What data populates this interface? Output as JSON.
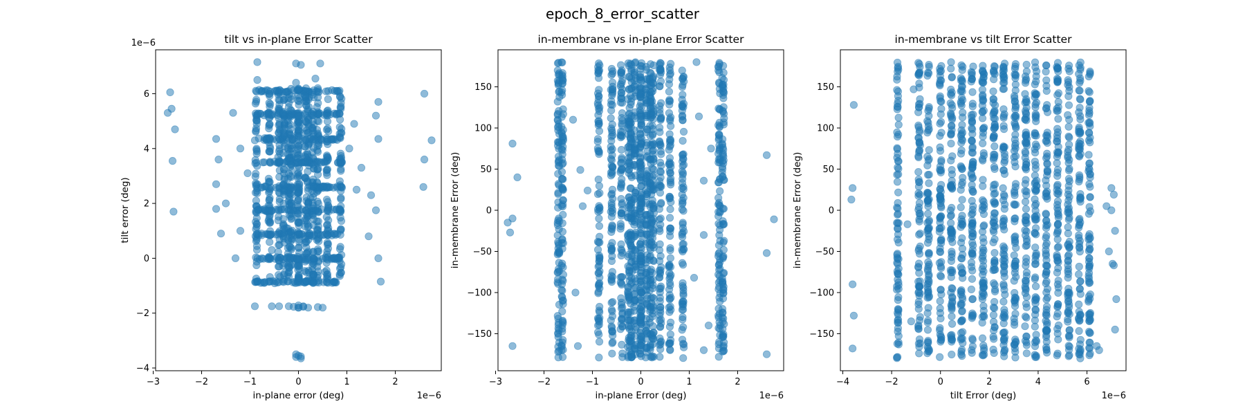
{
  "figure": {
    "suptitle": "epoch_8_error_scatter"
  },
  "chart_data": [
    {
      "type": "scatter",
      "title": "tilt vs in-plane Error Scatter",
      "xlabel": "in-plane error (deg)",
      "ylabel": "tilt error (deg)",
      "x_offset_text": "1e−6",
      "y_offset_text": "1e−6",
      "xlim": [
        -2.95,
        2.95
      ],
      "ylim": [
        -4.1,
        7.6
      ],
      "xticks": [
        -3,
        -2,
        -1,
        0,
        1,
        2
      ],
      "xtick_labels": [
        "−3",
        "−2",
        "−1",
        "0",
        "1",
        "2"
      ],
      "yticks": [
        -4,
        -2,
        0,
        2,
        4,
        6
      ],
      "ytick_labels": [
        "−4",
        "−2",
        "0",
        "2",
        "4",
        "6"
      ],
      "color": "#1f77b4",
      "alpha": 0.5,
      "series": [
        {
          "x": [
            -2.7,
            -2.65,
            -2.55,
            -2.62,
            -2.6,
            -2.58,
            2.6,
            2.75,
            2.6,
            2.58,
            -0.85,
            -0.05,
            0.05,
            0.45,
            0.35,
            -0.85,
            -0.05,
            0.4,
            -0.05,
            0.0,
            0.05,
            -0.05,
            0.05,
            0.0,
            0.1,
            -0.9,
            -1.7,
            1.65,
            1.6,
            1.65,
            -1.65,
            -1.7,
            -1.7,
            -1.6,
            1.65,
            1.7,
            1.6,
            -1.35,
            -1.2,
            1.15,
            1.3,
            -0.55,
            0.5,
            -0.2,
            0.2,
            -0.4,
            0.4,
            0.0,
            0.0,
            0.1,
            -0.1,
            1.5,
            -1.5,
            1.45,
            -1.3,
            0.85,
            -0.85,
            0.9,
            -0.9,
            0.6,
            -0.6,
            0.3,
            -0.3,
            0.7,
            -0.7,
            1.05,
            -1.05,
            1.2,
            -1.2,
            0.75,
            0.15,
            -0.15,
            0.25,
            -0.25,
            0.55,
            -0.55
          ],
          "y": [
            5.3,
            6.05,
            4.7,
            5.45,
            3.55,
            1.7,
            6.0,
            4.3,
            3.6,
            2.6,
            7.15,
            7.1,
            7.05,
            7.1,
            6.55,
            6.5,
            6.4,
            6.2,
            -3.6,
            -3.55,
            -3.65,
            -3.5,
            -3.58,
            -1.8,
            -1.75,
            -1.75,
            4.35,
            5.7,
            5.2,
            4.35,
            3.6,
            2.7,
            1.8,
            0.9,
            0.0,
            -0.85,
            1.75,
            5.3,
            4.0,
            4.9,
            3.3,
            -1.75,
            -1.8,
            -1.75,
            -1.8,
            -1.75,
            -1.78,
            -1.8,
            -1.72,
            -1.77,
            -1.77,
            2.3,
            2.0,
            0.8,
            0.0,
            1.8,
            2.7,
            3.5,
            4.3,
            5.2,
            6.0,
            0.0,
            0.9,
            -0.9,
            1.8,
            4.0,
            3.1,
            2.5,
            1.0,
            6.1,
            5.0,
            3.4,
            2.2,
            1.1,
            -0.5,
            0.3
          ],
          "dense_bands": [
            {
              "x_min": -0.9,
              "x_max": 0.9,
              "y_min": -0.9,
              "y_max": 6.1,
              "y_levels": [
                -0.87,
                0.0,
                0.87,
                1.75,
                2.6,
                3.5,
                4.35,
                5.25,
                6.1
              ],
              "x_columns": [
                -0.87,
                -0.6,
                -0.4,
                -0.2,
                0.0,
                0.2,
                0.4,
                0.6,
                0.87
              ]
            },
            {
              "x_min": -0.35,
              "x_max": 0.35,
              "y_min": -0.9,
              "y_max": 6.2,
              "y_levels": [],
              "x_columns": [
                -0.3,
                -0.15,
                0.0,
                0.15,
                0.3
              ]
            }
          ]
        }
      ]
    },
    {
      "type": "scatter",
      "title": "in-membrane vs in-plane Error Scatter",
      "xlabel": "in-plane Error (deg)",
      "ylabel": "in-membrane Error (deg)",
      "x_offset_text": "1e−6",
      "y_offset_text": "",
      "xlim": [
        -2.95,
        2.95
      ],
      "ylim": [
        -195,
        195
      ],
      "xticks": [
        -3,
        -2,
        -1,
        0,
        1,
        2
      ],
      "xtick_labels": [
        "−3",
        "−2",
        "−1",
        "0",
        "1",
        "2"
      ],
      "yticks": [
        -150,
        -100,
        -50,
        0,
        50,
        100,
        150
      ],
      "ytick_labels": [
        "−150",
        "−100",
        "−50",
        "0",
        "50",
        "100",
        "150"
      ],
      "color": "#1f77b4",
      "alpha": 0.5,
      "series": [
        {
          "x": [
            -2.65,
            -2.55,
            -2.65,
            -2.75,
            -2.7,
            -2.65,
            2.6,
            2.75,
            2.6,
            2.6,
            1.3,
            1.2,
            1.45,
            -1.3,
            -1.25,
            -1.1,
            1.1,
            1.3,
            1.4,
            -1.35,
            -1.2,
            1.15,
            1.3,
            -1.4
          ],
          "y": [
            81,
            40,
            -10,
            -15,
            -27,
            -165,
            67,
            -11,
            -52,
            -175,
            36,
            114,
            75,
            -165,
            49,
            24,
            -82,
            -30,
            -140,
            -100,
            5,
            180,
            -170,
            110
          ],
          "dense_bands": [
            {
              "x_min": -0.9,
              "x_max": 0.9,
              "y_min": -180,
              "y_max": 180,
              "y_levels": [],
              "x_columns": [
                -0.87,
                -0.6,
                -0.4,
                -0.2,
                0.0,
                0.2,
                0.4,
                0.6,
                0.87
              ]
            },
            {
              "x_min": -0.3,
              "x_max": 0.3,
              "y_min": -180,
              "y_max": 180,
              "y_levels": [],
              "x_columns": [
                -0.25,
                -0.12,
                0.0,
                0.12,
                0.25
              ]
            },
            {
              "x_min": -1.75,
              "x_max": -1.6,
              "y_min": -180,
              "y_max": 180,
              "y_levels": [],
              "x_columns": [
                -1.7,
                -1.62
              ]
            },
            {
              "x_min": 1.6,
              "x_max": 1.75,
              "y_min": -180,
              "y_max": 180,
              "y_levels": [],
              "x_columns": [
                1.62,
                1.7
              ]
            }
          ]
        }
      ]
    },
    {
      "type": "scatter",
      "title": "in-membrane vs tilt Error Scatter",
      "xlabel": "tilt Error (deg)",
      "ylabel": "in-membrane Error (deg)",
      "x_offset_text": "1e−6",
      "y_offset_text": "",
      "xlim": [
        -4.1,
        7.6
      ],
      "ylim": [
        -195,
        195
      ],
      "xticks": [
        -4,
        -2,
        0,
        2,
        4,
        6
      ],
      "xtick_labels": [
        "−4",
        "−2",
        "0",
        "2",
        "4",
        "6"
      ],
      "yticks": [
        -150,
        -100,
        -50,
        0,
        50,
        100,
        150
      ],
      "ytick_labels": [
        "−150",
        "−100",
        "−50",
        "0",
        "50",
        "100",
        "150"
      ],
      "color": "#1f77b4",
      "alpha": 0.5,
      "series": [
        {
          "x": [
            -3.55,
            -3.6,
            -3.65,
            -3.6,
            -3.55,
            -3.6,
            7.0,
            7.1,
            7.15,
            7.05,
            7.2,
            7.15,
            7.1,
            7.0,
            6.4,
            6.5,
            -1.2,
            -1.35,
            -1.1,
            6.8,
            6.9
          ],
          "y": [
            128,
            27,
            13,
            -90,
            -128,
            -168,
            27,
            19,
            -25,
            -65,
            -108,
            -145,
            -67,
            0,
            -165,
            -170,
            -135,
            -17,
            147,
            5,
            -50
          ],
          "dense_bands": [
            {
              "x_min": -1.8,
              "x_max": 6.1,
              "y_min": -180,
              "y_max": 180,
              "y_levels": [],
              "x_columns": [
                -1.75,
                -0.87,
                0.0,
                0.87,
                1.75,
                2.6,
                3.5,
                4.35,
                5.25,
                6.1
              ]
            },
            {
              "x_min": -0.9,
              "x_max": 6.1,
              "y_min": -180,
              "y_max": 180,
              "y_levels": [],
              "x_columns": [
                -0.5,
                0.45,
                1.3,
                2.2,
                3.05,
                3.9,
                4.8,
                5.7
              ]
            }
          ]
        }
      ]
    }
  ]
}
